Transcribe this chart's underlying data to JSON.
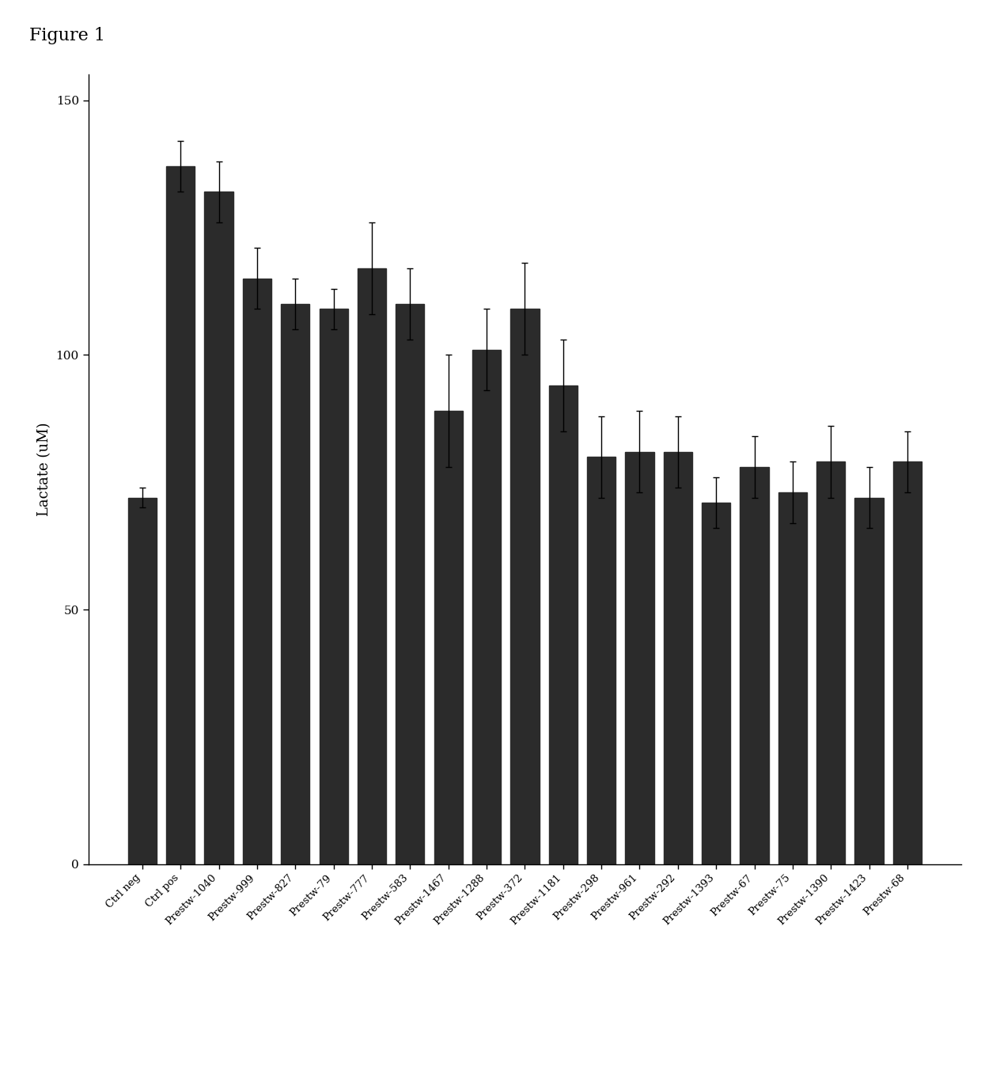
{
  "categories": [
    "Ctrl neg",
    "Ctrl pos",
    "Prestw-1040",
    "Prestw-999",
    "Prestw-827",
    "Prestw-79",
    "Prestw-777",
    "Prestw-583",
    "Prestw-1467",
    "Prestw-1288",
    "Prestw-372",
    "Prestw-1181",
    "Prestw-298",
    "Prestw-961",
    "Prestw-292",
    "Prestw-1393",
    "Prestw-67",
    "Prestw-75",
    "Prestw-1390",
    "Prestw-1423",
    "Prestw-68"
  ],
  "values": [
    72,
    137,
    132,
    115,
    110,
    109,
    117,
    110,
    89,
    101,
    109,
    94,
    80,
    81,
    81,
    71,
    78,
    73,
    79,
    72,
    79
  ],
  "errors": [
    2,
    5,
    6,
    6,
    5,
    4,
    9,
    7,
    11,
    8,
    9,
    9,
    8,
    8,
    7,
    5,
    6,
    6,
    7,
    6,
    6
  ],
  "bar_color": "#2b2b2b",
  "ylabel": "Lactate (uM)",
  "ylim": [
    0,
    155
  ],
  "yticks": [
    0,
    50,
    100,
    150
  ],
  "figure_label": "Figure 1",
  "background_color": "#ffffff",
  "bar_width": 0.75
}
